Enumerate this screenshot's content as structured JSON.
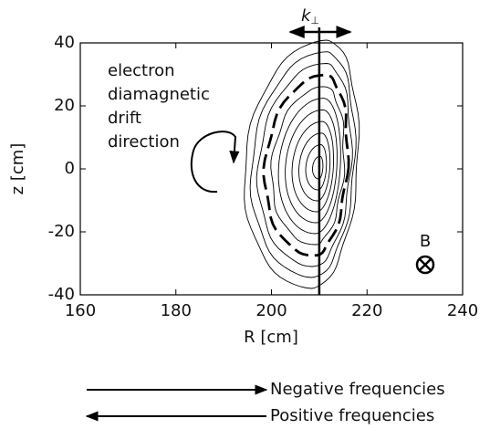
{
  "chart_data": {
    "type": "contour",
    "x_label": "R [cm]",
    "y_label": "z [cm]",
    "xlim": [
      160,
      240
    ],
    "xticks": [
      160,
      180,
      200,
      220,
      240
    ],
    "ylim": [
      -40,
      40
    ],
    "yticks": [
      -40,
      -20,
      0,
      20,
      40
    ],
    "chord_x": 210,
    "wave_label": "k",
    "wave_label_sub": "⊥",
    "drift_label": [
      "electron",
      "diamagnetic",
      "drift",
      "direction"
    ],
    "field_label": "B",
    "legend": [
      "Negative frequencies",
      "Positive frequencies"
    ]
  }
}
